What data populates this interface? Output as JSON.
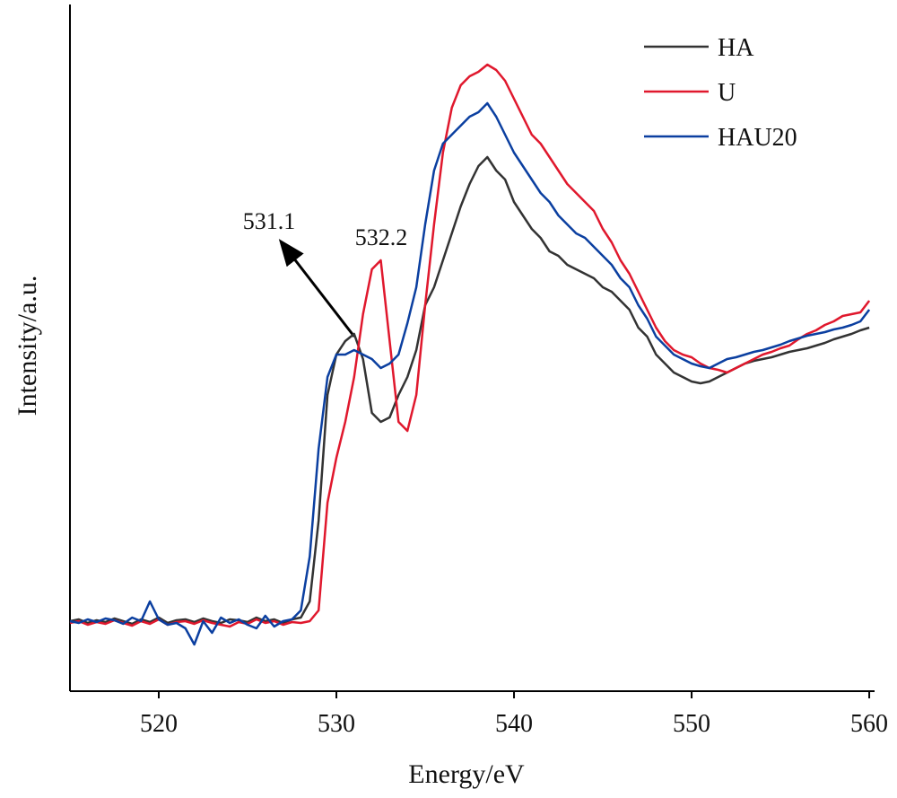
{
  "chart_data": {
    "type": "line",
    "xlabel": "Energy/eV",
    "ylabel": "Intensity/a.u.",
    "x": [
      515,
      515.5,
      516,
      516.5,
      517,
      517.5,
      518,
      518.5,
      519,
      519.5,
      520,
      520.5,
      521,
      521.5,
      522,
      522.5,
      523,
      523.5,
      524,
      524.5,
      525,
      525.5,
      526,
      526.5,
      527,
      527.5,
      528,
      528.5,
      529,
      529.5,
      530,
      530.5,
      531,
      531.5,
      532,
      532.5,
      533,
      533.5,
      534,
      534.5,
      535,
      535.5,
      536,
      536.5,
      537,
      537.5,
      538,
      538.5,
      539,
      539.5,
      540,
      540.5,
      541,
      541.5,
      542,
      542.5,
      543,
      543.5,
      544,
      544.5,
      545,
      545.5,
      546,
      546.5,
      547,
      547.5,
      548,
      548.5,
      549,
      549.5,
      550,
      550.5,
      551,
      551.5,
      552,
      552.5,
      553,
      553.5,
      554,
      554.5,
      555,
      555.5,
      556,
      556.5,
      557,
      557.5,
      558,
      558.5,
      559,
      559.5,
      560
    ],
    "series": [
      {
        "name": "HA",
        "color": "#333333",
        "values": [
          78,
          80,
          76,
          79,
          77,
          81,
          78,
          75,
          80,
          77,
          82,
          76,
          79,
          80,
          77,
          81,
          78,
          76,
          80,
          79,
          77,
          82,
          78,
          80,
          76,
          80,
          82,
          100,
          190,
          330,
          375,
          390,
          398,
          370,
          310,
          300,
          305,
          330,
          350,
          380,
          430,
          450,
          480,
          510,
          540,
          565,
          585,
          595,
          580,
          570,
          545,
          530,
          515,
          505,
          490,
          485,
          475,
          470,
          465,
          460,
          450,
          445,
          435,
          425,
          405,
          395,
          375,
          365,
          355,
          350,
          345,
          343,
          345,
          350,
          355,
          360,
          365,
          368,
          370,
          372,
          375,
          378,
          380,
          382,
          385,
          388,
          392,
          395,
          398,
          402,
          405
        ]
      },
      {
        "name": "U",
        "color": "#e0182d",
        "values": [
          76,
          78,
          74,
          77,
          75,
          79,
          76,
          73,
          78,
          75,
          80,
          74,
          77,
          78,
          75,
          79,
          76,
          74,
          72,
          77,
          75,
          80,
          76,
          78,
          74,
          77,
          76,
          78,
          90,
          210,
          260,
          300,
          350,
          420,
          470,
          480,
          390,
          300,
          290,
          330,
          430,
          520,
          600,
          650,
          675,
          685,
          690,
          698,
          692,
          680,
          660,
          640,
          620,
          610,
          595,
          580,
          565,
          555,
          545,
          535,
          515,
          500,
          480,
          465,
          445,
          425,
          405,
          390,
          380,
          375,
          372,
          365,
          360,
          358,
          355,
          360,
          365,
          370,
          375,
          378,
          382,
          385,
          392,
          398,
          402,
          408,
          412,
          418,
          420,
          422,
          435
        ]
      },
      {
        "name": "HAU20",
        "color": "#0b3fa0",
        "values": [
          78,
          76,
          80,
          77,
          81,
          79,
          75,
          82,
          78,
          100,
          80,
          74,
          76,
          70,
          52,
          78,
          65,
          82,
          76,
          80,
          74,
          70,
          84,
          72,
          78,
          80,
          90,
          150,
          270,
          350,
          375,
          375,
          380,
          375,
          370,
          360,
          365,
          375,
          410,
          450,
          520,
          580,
          610,
          620,
          630,
          640,
          645,
          655,
          640,
          620,
          600,
          585,
          570,
          555,
          545,
          530,
          520,
          510,
          505,
          495,
          485,
          475,
          460,
          450,
          430,
          415,
          395,
          385,
          375,
          370,
          365,
          362,
          360,
          365,
          370,
          372,
          375,
          378,
          380,
          383,
          386,
          390,
          393,
          396,
          398,
          400,
          403,
          405,
          408,
          412,
          425
        ]
      }
    ],
    "xlim": [
      515,
      560.3
    ],
    "xticks": [
      520,
      530,
      540,
      550,
      560
    ],
    "ylim": [
      0,
      765
    ],
    "legend": "upper right",
    "annotations": [
      "531.1",
      "532.2"
    ]
  }
}
